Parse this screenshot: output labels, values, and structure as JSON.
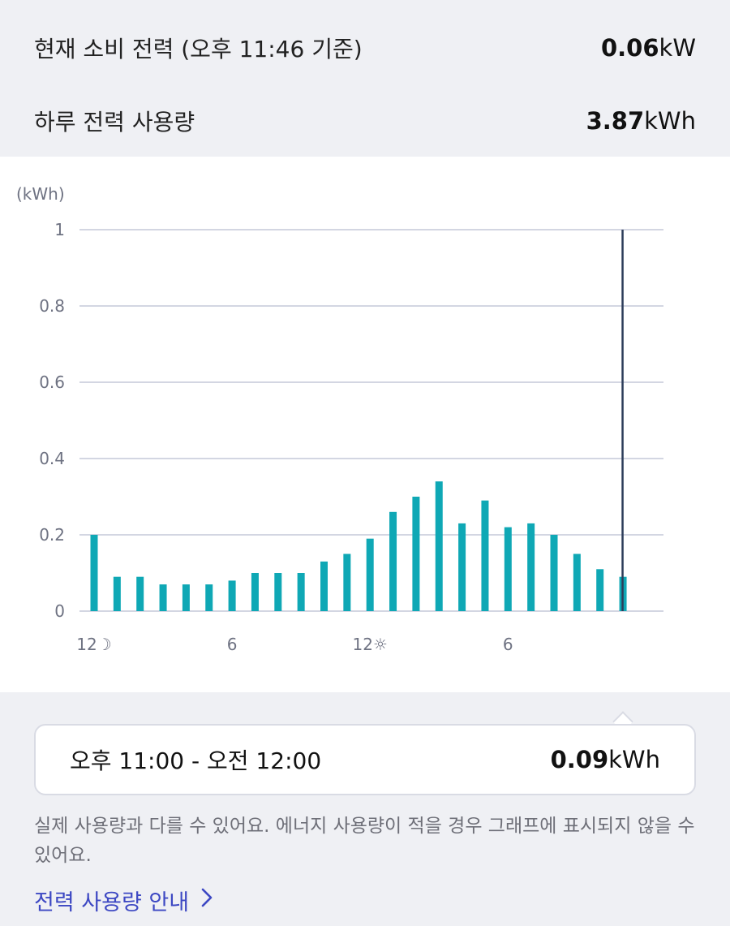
{
  "summary": {
    "current_label": "현재 소비 전력 (오후 11:46 기준)",
    "current_value": "0.06",
    "current_unit": "kW",
    "daily_label": "하루 전력 사용량",
    "daily_value": "3.87",
    "daily_unit": "kWh"
  },
  "chart_data": {
    "type": "bar",
    "ylabel": "(kWh)",
    "ylim": [
      0,
      1
    ],
    "y_ticks": [
      "0",
      "0.2",
      "0.4",
      "0.6",
      "0.8",
      "1"
    ],
    "x_tick_labels": [
      "12☽",
      "6",
      "12☼",
      "6"
    ],
    "x_tick_hours": [
      0,
      6,
      12,
      18
    ],
    "grid": true,
    "colors": {
      "bar": "#0fa8b5",
      "selected_line": "#2d3d5a",
      "grid": "#d3d6e2"
    },
    "selected_hour": 23,
    "hours": [
      0,
      1,
      2,
      3,
      4,
      5,
      6,
      7,
      8,
      9,
      10,
      11,
      12,
      13,
      14,
      15,
      16,
      17,
      18,
      19,
      20,
      21,
      22,
      23
    ],
    "values": [
      0.2,
      0.09,
      0.09,
      0.07,
      0.07,
      0.07,
      0.08,
      0.1,
      0.1,
      0.1,
      0.13,
      0.15,
      0.19,
      0.26,
      0.3,
      0.34,
      0.23,
      0.29,
      0.22,
      0.23,
      0.2,
      0.15,
      0.11,
      0.09
    ]
  },
  "tooltip": {
    "range": "오후 11:00 - 오전 12:00",
    "value": "0.09",
    "unit": "kWh"
  },
  "notice": "실제 사용량과 다를 수 있어요. 에너지 사용량이 적을 경우 그래프에 표시되지 않을 수 있어요.",
  "guide_link": {
    "label": "전력 사용량 안내",
    "icon": "chevron-right-icon"
  }
}
